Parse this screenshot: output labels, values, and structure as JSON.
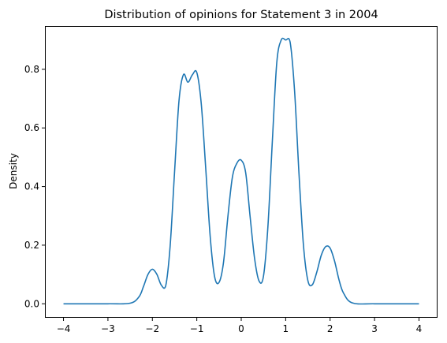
{
  "chart_data": {
    "type": "line",
    "title": "Distribution of opinions for Statement 3 in 2004",
    "xlabel": "",
    "ylabel": "Density",
    "xlim": [
      -4.4,
      4.4
    ],
    "ylim": [
      -0.045,
      0.945
    ],
    "x_ticks": [
      -4,
      -3,
      -2,
      -1,
      0,
      1,
      2,
      3,
      4
    ],
    "x_tick_labels": [
      "−4",
      "−3",
      "−2",
      "−1",
      "0",
      "1",
      "2",
      "3",
      "4"
    ],
    "y_ticks": [
      0.0,
      0.2,
      0.4,
      0.6,
      0.8
    ],
    "y_tick_labels": [
      "0.0",
      "0.2",
      "0.4",
      "0.6",
      "0.8"
    ],
    "grid": false,
    "series": [
      {
        "color": "#1f77b4",
        "x": [
          -4.0,
          -3.0,
          -2.5,
          -2.3,
          -2.2,
          -2.1,
          -2.0,
          -1.9,
          -1.8,
          -1.7,
          -1.6,
          -1.5,
          -1.4,
          -1.3,
          -1.2,
          -1.1,
          -1.0,
          -0.9,
          -0.8,
          -0.7,
          -0.6,
          -0.5,
          -0.4,
          -0.3,
          -0.2,
          -0.1,
          0.0,
          0.1,
          0.2,
          0.3,
          0.4,
          0.5,
          0.6,
          0.7,
          0.8,
          0.9,
          1.0,
          1.1,
          1.2,
          1.3,
          1.4,
          1.5,
          1.6,
          1.7,
          1.8,
          1.9,
          2.0,
          2.1,
          2.2,
          2.3,
          2.5,
          3.0,
          4.0
        ],
        "y": [
          0.0,
          0.0,
          0.002,
          0.024,
          0.059,
          0.1,
          0.118,
          0.101,
          0.064,
          0.061,
          0.197,
          0.451,
          0.694,
          0.782,
          0.756,
          0.781,
          0.789,
          0.683,
          0.464,
          0.232,
          0.093,
          0.073,
          0.14,
          0.298,
          0.431,
          0.479,
          0.49,
          0.447,
          0.297,
          0.155,
          0.078,
          0.094,
          0.263,
          0.554,
          0.823,
          0.9,
          0.9,
          0.893,
          0.727,
          0.443,
          0.2,
          0.079,
          0.065,
          0.108,
          0.165,
          0.195,
          0.19,
          0.146,
          0.082,
          0.037,
          0.003,
          0.0,
          0.0
        ]
      }
    ]
  }
}
